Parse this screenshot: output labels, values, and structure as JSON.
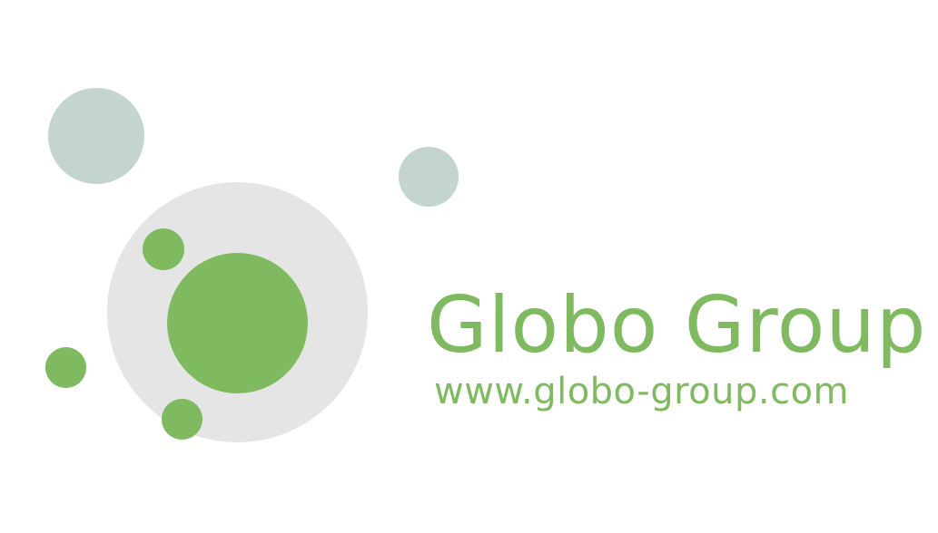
{
  "brand": {
    "name": "Globo Group",
    "url": "www.globo-group.com"
  },
  "colors": {
    "brand_green": "#7fba60",
    "sage_gray": "#c3d5cc",
    "light_gray": "#e5e5e5",
    "background": "#ffffff"
  }
}
